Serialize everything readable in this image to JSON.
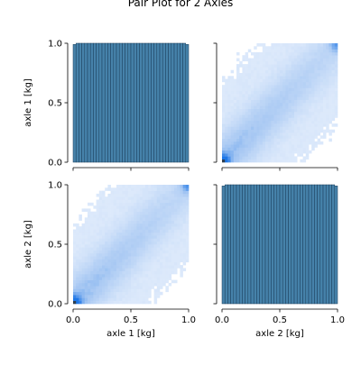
{
  "chart_data": {
    "type": "pairplot",
    "title": "Pair Plot for 2 Axles",
    "variables": [
      "axle 1 [kg]",
      "axle 2 [kg]"
    ],
    "ticks": [
      0.0,
      0.5,
      1.0
    ],
    "tick_labels": [
      "0.0",
      "0.5",
      "1.0"
    ],
    "range": [
      0.0,
      1.0
    ],
    "grid": false,
    "colors": {
      "histogram": "#3274a1",
      "heatmap_low": "#dce9fb",
      "heatmap_mid": "#a9c9f3",
      "heatmap_high": "#1f77e6",
      "heatmap_peak": "#2c3e50"
    },
    "panels": [
      {
        "row": "axle 1 [kg]",
        "col": "axle 1 [kg]",
        "type": "histogram",
        "bins": 40,
        "relative_heights": [
          0.99,
          1,
          1,
          1,
          1,
          1,
          1,
          1,
          1,
          1,
          1,
          1,
          1,
          1,
          1,
          1,
          1,
          1,
          1,
          1,
          1,
          1,
          1,
          1,
          1,
          1,
          1,
          1,
          1,
          1,
          1,
          1,
          1,
          1,
          1,
          1,
          1,
          1,
          1,
          0.99
        ]
      },
      {
        "row": "axle 1 [kg]",
        "col": "axle 2 [kg]",
        "type": "heatmap",
        "bins": 40,
        "pattern": "density concentrated along the diagonal, strongest near (0,0) and (1,1)"
      },
      {
        "row": "axle 2 [kg]",
        "col": "axle 1 [kg]",
        "type": "heatmap",
        "bins": 40,
        "pattern": "density concentrated along the diagonal, strongest near (0,0) and (1,1)"
      },
      {
        "row": "axle 2 [kg]",
        "col": "axle 2 [kg]",
        "type": "histogram",
        "bins": 40,
        "relative_heights": [
          0.99,
          1,
          1,
          1,
          1,
          1,
          1,
          1,
          1,
          1,
          1,
          1,
          1,
          1,
          1,
          1,
          1,
          1,
          1,
          1,
          1,
          1,
          1,
          1,
          1,
          1,
          1,
          1,
          1,
          1,
          1,
          1,
          1,
          1,
          1,
          1,
          1,
          1,
          1,
          0.99
        ]
      }
    ]
  }
}
